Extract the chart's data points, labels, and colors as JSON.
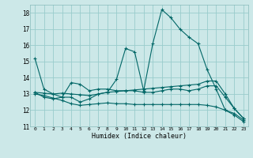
{
  "xlabel": "Humidex (Indice chaleur)",
  "bg_color": "#cce8e8",
  "line_color": "#006666",
  "grid_color": "#99cccc",
  "x_data": [
    0,
    1,
    2,
    3,
    4,
    5,
    6,
    7,
    8,
    9,
    10,
    11,
    12,
    13,
    14,
    15,
    16,
    17,
    18,
    19,
    20,
    21,
    22,
    23
  ],
  "line1": [
    15.2,
    13.3,
    13.0,
    12.8,
    12.8,
    12.5,
    12.7,
    13.0,
    13.1,
    13.9,
    15.8,
    15.6,
    13.2,
    16.1,
    18.2,
    17.7,
    17.0,
    16.5,
    16.1,
    14.5,
    13.3,
    12.0,
    11.7,
    11.3
  ],
  "line2": [
    13.1,
    13.05,
    13.0,
    13.05,
    13.0,
    12.95,
    12.9,
    13.0,
    13.1,
    13.15,
    13.2,
    13.25,
    13.3,
    13.35,
    13.4,
    13.45,
    13.5,
    13.55,
    13.6,
    13.8,
    13.8,
    13.0,
    12.1,
    11.5
  ],
  "line3": [
    13.1,
    12.8,
    12.7,
    12.8,
    13.7,
    13.6,
    13.2,
    13.3,
    13.3,
    13.2,
    13.2,
    13.2,
    13.1,
    13.1,
    13.2,
    13.3,
    13.3,
    13.2,
    13.3,
    13.5,
    13.5,
    12.8,
    12.1,
    11.5
  ],
  "line4": [
    13.0,
    12.9,
    12.75,
    12.6,
    12.4,
    12.3,
    12.35,
    12.4,
    12.45,
    12.4,
    12.4,
    12.35,
    12.35,
    12.35,
    12.35,
    12.35,
    12.35,
    12.35,
    12.35,
    12.3,
    12.2,
    12.0,
    11.8,
    11.4
  ],
  "ylim": [
    11,
    18.5
  ],
  "xlim": [
    -0.5,
    23.5
  ],
  "yticks": [
    11,
    12,
    13,
    14,
    15,
    16,
    17,
    18
  ],
  "xticks": [
    0,
    1,
    2,
    3,
    4,
    5,
    6,
    7,
    8,
    9,
    10,
    11,
    12,
    13,
    14,
    15,
    16,
    17,
    18,
    19,
    20,
    21,
    22,
    23
  ]
}
